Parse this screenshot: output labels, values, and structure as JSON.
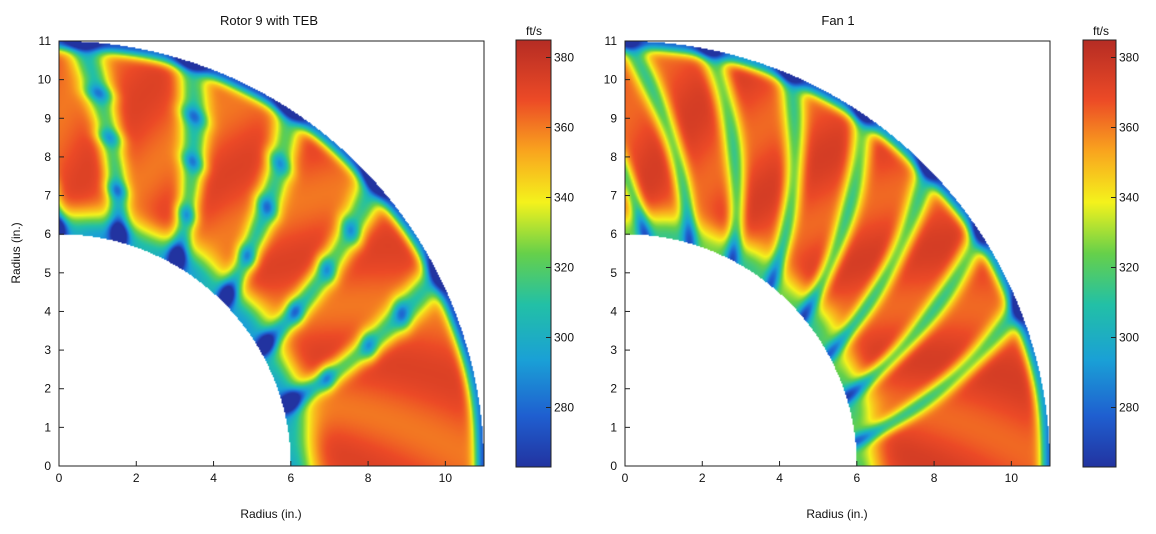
{
  "chart_data": [
    {
      "type": "heatmap",
      "title": "Rotor 9 with TEB",
      "xlabel": "Radius (in.)",
      "ylabel": "Radius (in.)",
      "xlim": [
        0,
        11
      ],
      "ylim": [
        0,
        11
      ],
      "x_ticks": [
        "0",
        "2",
        "4",
        "6",
        "8",
        "10"
      ],
      "y_ticks": [
        "0",
        "1",
        "2",
        "3",
        "4",
        "5",
        "6",
        "7",
        "8",
        "9",
        "10",
        "11"
      ],
      "domain": {
        "inner_radius": 6,
        "outer_radius": 11,
        "angle_range_deg": [
          0,
          90
        ]
      },
      "field": {
        "base": 0.85,
        "n_blades": 6,
        "blade_start_deg": 15,
        "blade_spacing_deg": 15,
        "blade_twist_deg": 12,
        "wake_width_deg": 1.6,
        "wake_depth": 0.42,
        "node_rings": [
          6.25,
          7.3,
          8.6,
          9.7
        ],
        "hub_level": 0.55,
        "tip_level": 0.15
      },
      "colorbar": {
        "label": "ft/s",
        "range": [
          263,
          385
        ],
        "ticks": [
          "280",
          "300",
          "320",
          "340",
          "360",
          "380"
        ]
      }
    },
    {
      "type": "heatmap",
      "title": "Fan 1",
      "xlabel": "Radius (in.)",
      "ylabel": "Radius (in.)",
      "xlim": [
        0,
        11
      ],
      "ylim": [
        0,
        11
      ],
      "x_ticks": [
        "0",
        "2",
        "4",
        "6",
        "8",
        "10"
      ],
      "y_ticks": [
        "0",
        "1",
        "2",
        "3",
        "4",
        "5",
        "6",
        "7",
        "8",
        "9",
        "10",
        "11"
      ],
      "domain": {
        "inner_radius": 6,
        "outer_radius": 11,
        "angle_range_deg": [
          0,
          90
        ]
      },
      "field": {
        "base": 0.87,
        "n_blades": 8,
        "blade_start_deg": 6,
        "blade_spacing_deg": 11.3,
        "blade_twist_deg": 16,
        "wake_width_deg": 1.3,
        "wake_depth": 0.4,
        "node_rings": [],
        "hub_level": 0.4,
        "tip_level": 0.12
      },
      "colorbar": {
        "label": "ft/s",
        "range": [
          263,
          385
        ],
        "ticks": [
          "280",
          "300",
          "320",
          "340",
          "360",
          "380"
        ]
      }
    }
  ]
}
